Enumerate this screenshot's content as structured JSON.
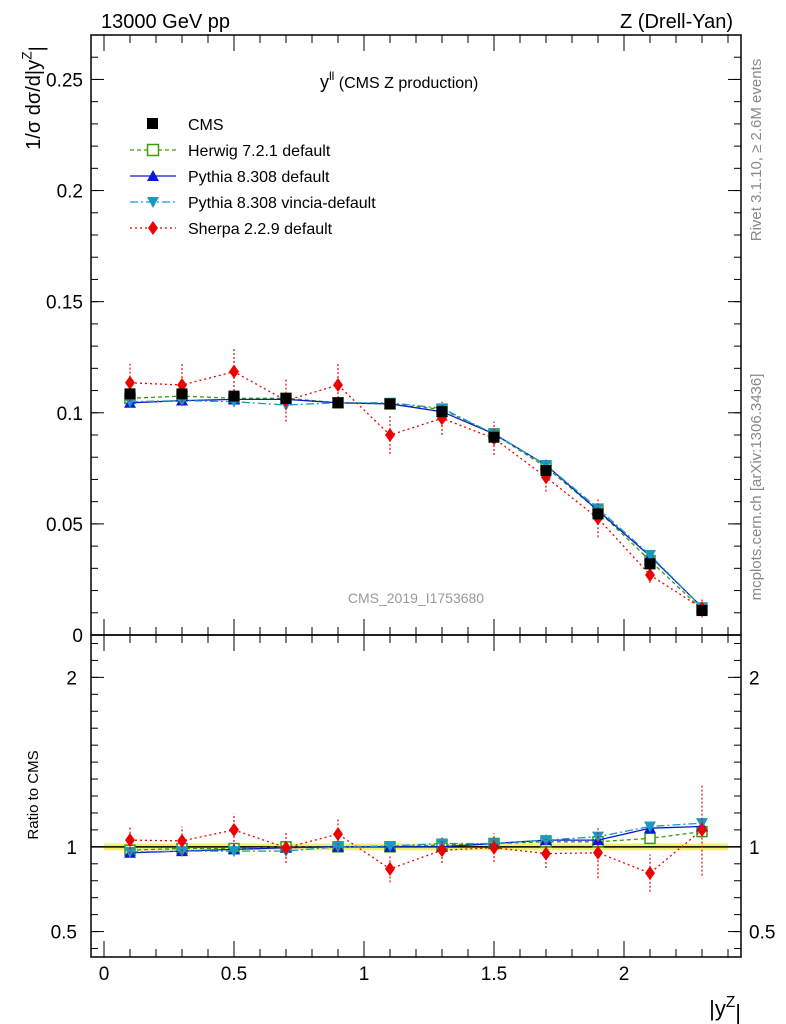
{
  "header": {
    "left": "13000 GeV pp",
    "right": "Z (Drell-Yan)"
  },
  "side": {
    "rivet": "Rivet 3.1.10, ≥ 2.6M events",
    "mcplots": "mcplots.cern.ch [arXiv:1306.3436]"
  },
  "colors": {
    "cms": "#000000",
    "herwig": "#3a9a0a",
    "pythia": "#0a1ad0",
    "vincia": "#1a9ac0",
    "sherpa": "#ee0000",
    "band": "#f0f070"
  },
  "chart_data": [
    {
      "type": "line",
      "panel": "main",
      "title_main": "y",
      "title_sup": "ll",
      "title_rest": " (CMS Z production)",
      "watermark": "CMS_2019_I1753680",
      "ylabel": "1/σ dσ/d|y^Z|",
      "xlim": [
        -0.05,
        2.45
      ],
      "ylim": [
        0,
        0.27
      ],
      "yticks": [
        0,
        0.05,
        0.1,
        0.15,
        0.2,
        0.25
      ],
      "ytick_labels": [
        "0",
        "0.05",
        "0.1",
        "0.15",
        "0.2",
        "0.25"
      ],
      "x": [
        0.1,
        0.3,
        0.5,
        0.7,
        0.9,
        1.1,
        1.3,
        1.5,
        1.7,
        1.9,
        2.1,
        2.3
      ],
      "series": [
        {
          "key": "cms",
          "name": "CMS",
          "marker": "square",
          "values": [
            0.1085,
            0.1085,
            0.1075,
            0.1065,
            0.1045,
            0.104,
            0.1005,
            0.089,
            0.074,
            0.0545,
            0.032,
            0.011
          ]
        },
        {
          "key": "herwig",
          "name": "Herwig 7.2.1 default",
          "marker": "open-square",
          "dash": "4,3",
          "values": [
            0.1065,
            0.1075,
            0.1065,
            0.1065,
            0.1045,
            0.104,
            0.1015,
            0.0905,
            0.0755,
            0.056,
            0.0335,
            0.0115
          ]
        },
        {
          "key": "pythia",
          "name": "Pythia 8.308 default",
          "marker": "triangle-up",
          "dash": "",
          "values": [
            0.1045,
            0.1055,
            0.106,
            0.106,
            0.1045,
            0.104,
            0.1005,
            0.0905,
            0.0765,
            0.056,
            0.0355,
            0.0125
          ]
        },
        {
          "key": "vincia",
          "name": "Pythia 8.308 vincia-default",
          "marker": "triangle-down",
          "dash": "8,3,2,3",
          "values": [
            0.105,
            0.1055,
            0.105,
            0.1035,
            0.1045,
            0.1045,
            0.102,
            0.0905,
            0.0765,
            0.057,
            0.036,
            0.0125
          ]
        },
        {
          "key": "sherpa",
          "name": "Sherpa 2.2.9 default",
          "marker": "diamond",
          "dash": "2,3",
          "values": [
            0.1135,
            0.1125,
            0.1185,
            0.1055,
            0.1125,
            0.09,
            0.0975,
            0.0885,
            0.071,
            0.0525,
            0.027,
            0.012
          ],
          "errors": [
            0.0085,
            0.0095,
            0.0105,
            0.0095,
            0.0095,
            0.0085,
            0.0075,
            0.0075,
            0.0065,
            0.0085,
            0.0035,
            0.004
          ]
        }
      ]
    },
    {
      "type": "line",
      "panel": "ratio",
      "ylabel": "Ratio to CMS",
      "xlabel": "|y^Z|",
      "xlim": [
        -0.05,
        2.45
      ],
      "ylim": [
        0.35,
        2.25
      ],
      "yticks": [
        0.5,
        1,
        2
      ],
      "ytick_labels": [
        "0.5",
        "1",
        "2"
      ],
      "xticks": [
        0,
        0.5,
        1,
        1.5,
        2
      ],
      "xtick_labels": [
        "0",
        "0.5",
        "1",
        "1.5",
        "2"
      ],
      "x": [
        0.1,
        0.3,
        0.5,
        0.7,
        0.9,
        1.1,
        1.3,
        1.5,
        1.7,
        1.9,
        2.1,
        2.3
      ],
      "band": [
        0.02,
        0.02,
        0.02,
        0.02,
        0.02,
        0.02,
        0.02,
        0.02,
        0.02,
        0.02,
        0.02,
        0.02
      ],
      "series": [
        {
          "key": "herwig",
          "name": "Herwig 7.2.1 default",
          "marker": "open-square",
          "dash": "4,3",
          "values": [
            0.98,
            0.99,
            0.99,
            1.0,
            1.0,
            1.0,
            1.01,
            1.02,
            1.03,
            1.03,
            1.05,
            1.09
          ]
        },
        {
          "key": "pythia",
          "name": "Pythia 8.308 default",
          "marker": "triangle-up",
          "dash": "",
          "values": [
            0.965,
            0.975,
            0.985,
            0.995,
            1.0,
            1.0,
            1.0,
            1.02,
            1.04,
            1.04,
            1.11,
            1.12
          ]
        },
        {
          "key": "vincia",
          "name": "Pythia 8.308 vincia-default",
          "marker": "triangle-down",
          "dash": "8,3,2,3",
          "values": [
            0.97,
            0.975,
            0.975,
            0.975,
            1.0,
            1.005,
            1.02,
            1.02,
            1.04,
            1.06,
            1.12,
            1.14
          ]
        },
        {
          "key": "sherpa",
          "name": "Sherpa 2.2.9 default",
          "marker": "diamond",
          "dash": "2,3",
          "values": [
            1.04,
            1.035,
            1.1,
            0.995,
            1.075,
            0.87,
            0.98,
            0.995,
            0.96,
            0.965,
            0.845,
            1.1
          ],
          "errors": [
            0.08,
            0.085,
            0.095,
            0.09,
            0.09,
            0.08,
            0.075,
            0.085,
            0.085,
            0.15,
            0.11,
            0.27
          ]
        }
      ]
    }
  ]
}
